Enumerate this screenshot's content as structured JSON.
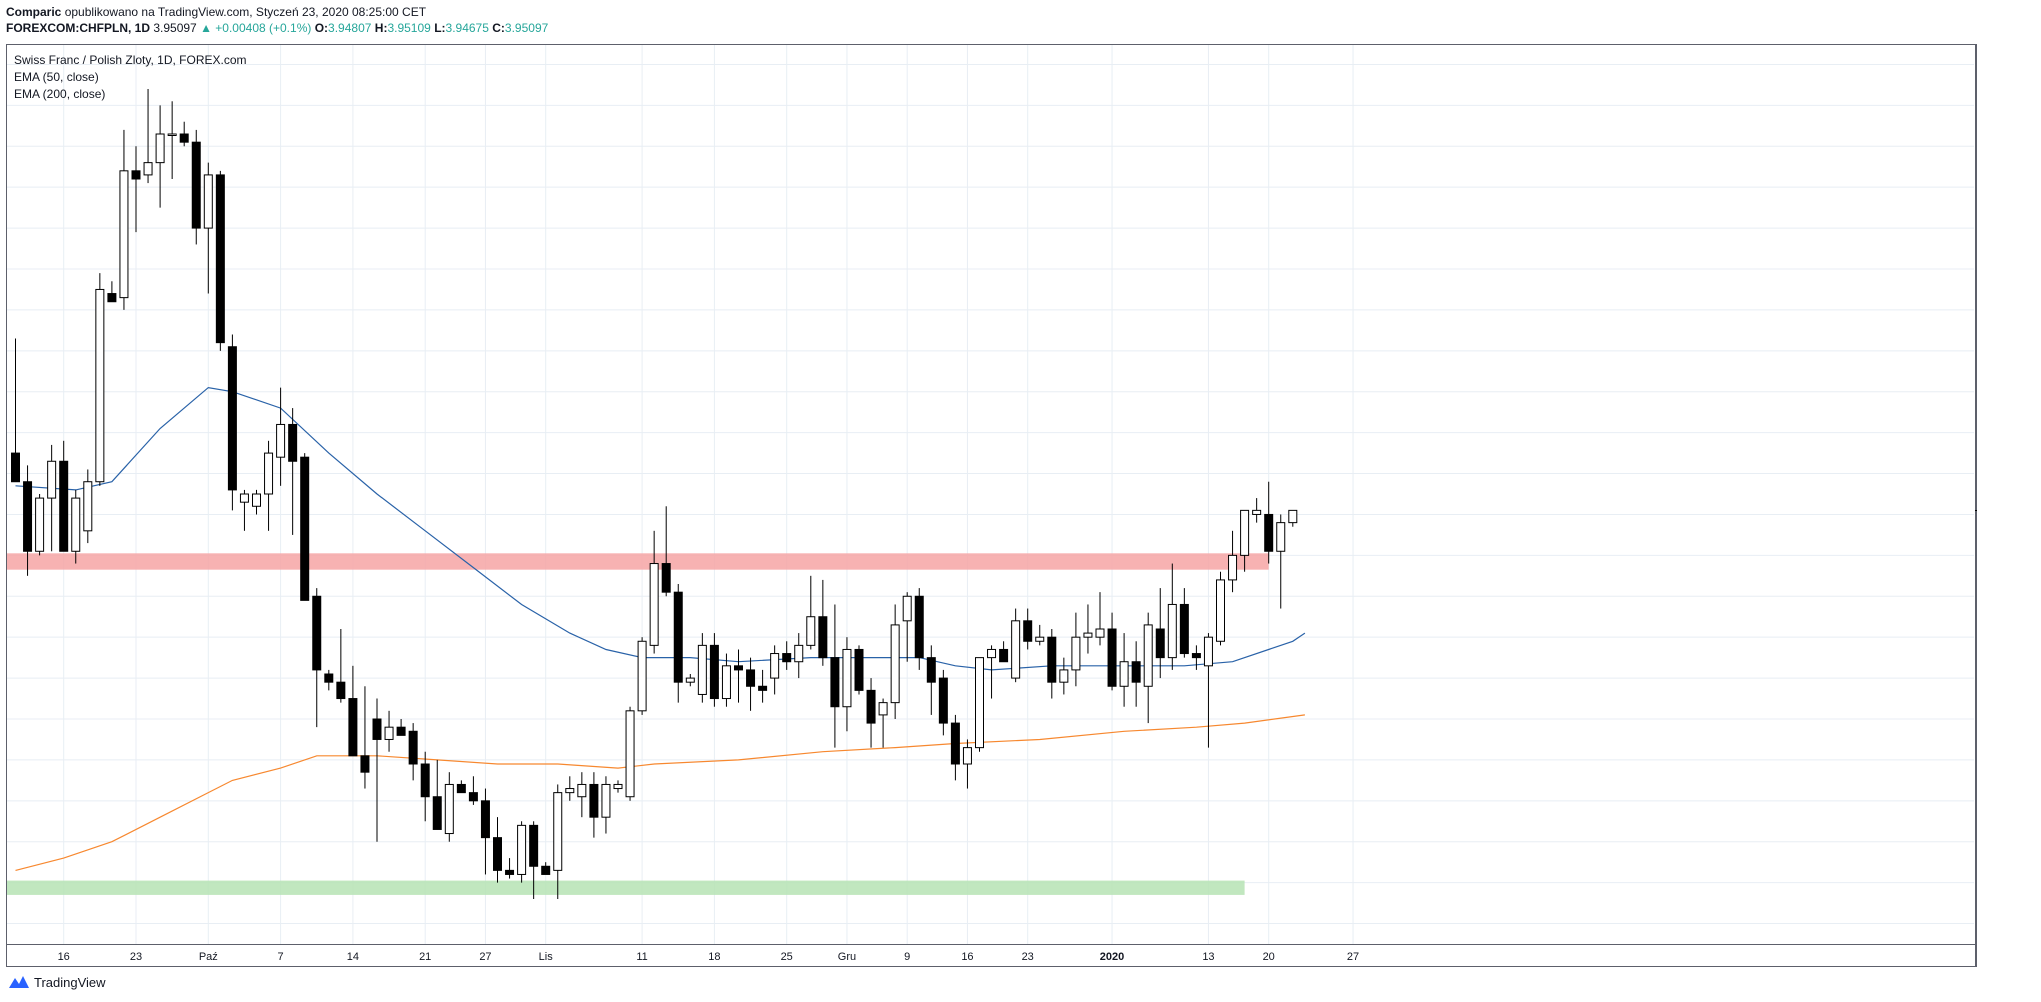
{
  "header": {
    "author": "Comparic",
    "published": "opublikowano na TradingView.com, Styczeń 23, 2020 08:25:00 CET",
    "symbol": "FOREXCOM:CHFPLN, 1D",
    "last": "3.95097",
    "change": "▲ +0.00408 (+0.1%)",
    "o_label": "O:",
    "o": "3.94807",
    "h_label": "H:",
    "h": "3.95109",
    "l_label": "L:",
    "l": "3.94675",
    "c_label": "C:",
    "c": "3.95097"
  },
  "legend": {
    "title": "Swiss Franc / Polish Zloty, 1D, FOREX.com",
    "ema50": "EMA (50, close)",
    "ema200": "EMA (200, close)"
  },
  "footer": {
    "brand": "TradingView"
  },
  "colors": {
    "up": "#ffffff",
    "down": "#000000",
    "wick": "#000000",
    "ema50": "#2962a8",
    "ema200": "#f7882f",
    "resistance": "#f6a5a5",
    "support": "#b6e3b4",
    "grid": "#e8eef4",
    "price_tag": "#000000"
  },
  "chart_data": {
    "type": "candlestick",
    "symbol": "CHFPLN",
    "interval": "1D",
    "ylim": [
      3.845,
      4.065
    ],
    "y_ticks": [
      "3.85000",
      "3.86000",
      "3.87000",
      "3.88000",
      "3.89000",
      "3.90000",
      "3.91000",
      "3.92000",
      "3.93000",
      "3.94000",
      "3.95000",
      "3.96000",
      "3.97000",
      "3.98000",
      "3.99000",
      "4.00000",
      "4.01000",
      "4.02000",
      "4.03000",
      "4.04000",
      "4.05000",
      "4.06000"
    ],
    "last_price_label": "3.95097",
    "x_ticks": [
      {
        "label": "16",
        "i": 4
      },
      {
        "label": "23",
        "i": 10
      },
      {
        "label": "Paź",
        "i": 16
      },
      {
        "label": "7",
        "i": 22
      },
      {
        "label": "14",
        "i": 28
      },
      {
        "label": "21",
        "i": 34
      },
      {
        "label": "27",
        "i": 39
      },
      {
        "label": "Lis",
        "i": 44
      },
      {
        "label": "11",
        "i": 52
      },
      {
        "label": "18",
        "i": 58
      },
      {
        "label": "25",
        "i": 64
      },
      {
        "label": "Gru",
        "i": 69
      },
      {
        "label": "9",
        "i": 74
      },
      {
        "label": "16",
        "i": 79
      },
      {
        "label": "23",
        "i": 84
      },
      {
        "label": "2020",
        "i": 91
      },
      {
        "label": "13",
        "i": 99
      },
      {
        "label": "20",
        "i": 104
      },
      {
        "label": "27",
        "i": 111
      }
    ],
    "candles": [
      [
        3.965,
        3.993,
        3.958,
        3.958
      ],
      [
        3.958,
        3.962,
        3.935,
        3.941
      ],
      [
        3.941,
        3.955,
        3.94,
        3.954
      ],
      [
        3.954,
        3.967,
        3.941,
        3.963
      ],
      [
        3.963,
        3.968,
        3.941,
        3.941
      ],
      [
        3.941,
        3.956,
        3.938,
        3.954
      ],
      [
        3.946,
        3.961,
        3.943,
        3.958
      ],
      [
        3.958,
        4.009,
        3.957,
        4.005
      ],
      [
        4.004,
        4.007,
        4.002,
        4.002
      ],
      [
        4.003,
        4.044,
        4.0,
        4.034
      ],
      [
        4.034,
        4.04,
        4.019,
        4.032
      ],
      [
        4.033,
        4.054,
        4.031,
        4.036
      ],
      [
        4.036,
        4.05,
        4.025,
        4.043
      ],
      [
        4.043,
        4.051,
        4.032,
        4.043
      ],
      [
        4.043,
        4.046,
        4.04,
        4.041
      ],
      [
        4.041,
        4.044,
        4.016,
        4.02
      ],
      [
        4.02,
        4.036,
        4.004,
        4.033
      ],
      [
        4.033,
        4.034,
        3.99,
        3.992
      ],
      [
        3.991,
        3.994,
        3.951,
        3.956
      ],
      [
        3.953,
        3.956,
        3.946,
        3.955
      ],
      [
        3.952,
        3.956,
        3.95,
        3.955
      ],
      [
        3.955,
        3.968,
        3.946,
        3.965
      ],
      [
        3.964,
        3.981,
        3.957,
        3.972
      ],
      [
        3.972,
        3.976,
        3.945,
        3.963
      ],
      [
        3.964,
        3.965,
        3.929,
        3.929
      ],
      [
        3.93,
        3.932,
        3.898,
        3.912
      ],
      [
        3.911,
        3.912,
        3.907,
        3.909
      ],
      [
        3.909,
        3.922,
        3.904,
        3.905
      ],
      [
        3.905,
        3.913,
        3.891,
        3.891
      ],
      [
        3.891,
        3.908,
        3.883,
        3.887
      ],
      [
        3.9,
        3.905,
        3.87,
        3.895
      ],
      [
        3.895,
        3.902,
        3.892,
        3.898
      ],
      [
        3.898,
        3.9,
        3.896,
        3.896
      ],
      [
        3.897,
        3.899,
        3.885,
        3.889
      ],
      [
        3.889,
        3.892,
        3.875,
        3.881
      ],
      [
        3.881,
        3.89,
        3.873,
        3.873
      ],
      [
        3.872,
        3.887,
        3.87,
        3.884
      ],
      [
        3.884,
        3.885,
        3.882,
        3.882
      ],
      [
        3.882,
        3.886,
        3.879,
        3.88
      ],
      [
        3.88,
        3.883,
        3.862,
        3.871
      ],
      [
        3.871,
        3.876,
        3.86,
        3.863
      ],
      [
        3.863,
        3.866,
        3.861,
        3.862
      ],
      [
        3.862,
        3.875,
        3.86,
        3.874
      ],
      [
        3.874,
        3.875,
        3.856,
        3.864
      ],
      [
        3.864,
        3.865,
        3.862,
        3.862
      ],
      [
        3.863,
        3.884,
        3.856,
        3.882
      ],
      [
        3.882,
        3.886,
        3.88,
        3.883
      ],
      [
        3.881,
        3.887,
        3.876,
        3.884
      ],
      [
        3.884,
        3.887,
        3.871,
        3.876
      ],
      [
        3.876,
        3.886,
        3.872,
        3.884
      ],
      [
        3.883,
        3.885,
        3.882,
        3.884
      ],
      [
        3.881,
        3.903,
        3.88,
        3.902
      ],
      [
        3.902,
        3.92,
        3.901,
        3.919
      ],
      [
        3.918,
        3.946,
        3.916,
        3.938
      ],
      [
        3.938,
        3.952,
        3.93,
        3.931
      ],
      [
        3.931,
        3.933,
        3.904,
        3.909
      ],
      [
        3.909,
        3.911,
        3.908,
        3.91
      ],
      [
        3.906,
        3.921,
        3.904,
        3.918
      ],
      [
        3.918,
        3.921,
        3.903,
        3.905
      ],
      [
        3.905,
        3.916,
        3.903,
        3.913
      ],
      [
        3.913,
        3.917,
        3.904,
        3.912
      ],
      [
        3.912,
        3.915,
        3.902,
        3.908
      ],
      [
        3.908,
        3.912,
        3.904,
        3.907
      ],
      [
        3.91,
        3.918,
        3.906,
        3.916
      ],
      [
        3.916,
        3.919,
        3.912,
        3.914
      ],
      [
        3.914,
        3.921,
        3.91,
        3.918
      ],
      [
        3.918,
        3.935,
        3.917,
        3.925
      ],
      [
        3.925,
        3.934,
        3.913,
        3.915
      ],
      [
        3.915,
        3.928,
        3.893,
        3.903
      ],
      [
        3.903,
        3.92,
        3.897,
        3.917
      ],
      [
        3.917,
        3.918,
        3.906,
        3.907
      ],
      [
        3.907,
        3.91,
        3.893,
        3.899
      ],
      [
        3.901,
        3.905,
        3.893,
        3.904
      ],
      [
        3.904,
        3.928,
        3.9,
        3.923
      ],
      [
        3.924,
        3.931,
        3.914,
        3.93
      ],
      [
        3.93,
        3.932,
        3.912,
        3.915
      ],
      [
        3.915,
        3.918,
        3.901,
        3.909
      ],
      [
        3.91,
        3.912,
        3.896,
        3.899
      ],
      [
        3.899,
        3.901,
        3.885,
        3.889
      ],
      [
        3.889,
        3.895,
        3.883,
        3.893
      ],
      [
        3.893,
        3.913,
        3.892,
        3.915
      ],
      [
        3.915,
        3.918,
        3.905,
        3.917
      ],
      [
        3.917,
        3.919,
        3.914,
        3.914
      ],
      [
        3.91,
        3.927,
        3.909,
        3.924
      ],
      [
        3.924,
        3.927,
        3.917,
        3.919
      ],
      [
        3.919,
        3.923,
        3.918,
        3.92
      ],
      [
        3.92,
        3.922,
        3.905,
        3.909
      ],
      [
        3.909,
        3.915,
        3.906,
        3.912
      ],
      [
        3.912,
        3.926,
        3.908,
        3.92
      ],
      [
        3.92,
        3.928,
        3.916,
        3.921
      ],
      [
        3.92,
        3.931,
        3.918,
        3.922
      ],
      [
        3.922,
        3.926,
        3.907,
        3.908
      ],
      [
        3.908,
        3.921,
        3.903,
        3.914
      ],
      [
        3.914,
        3.919,
        3.903,
        3.909
      ],
      [
        3.908,
        3.926,
        3.899,
        3.923
      ],
      [
        3.922,
        3.932,
        3.91,
        3.915
      ],
      [
        3.915,
        3.938,
        3.912,
        3.928
      ],
      [
        3.928,
        3.932,
        3.915,
        3.916
      ],
      [
        3.916,
        3.918,
        3.912,
        3.915
      ],
      [
        3.913,
        3.921,
        3.893,
        3.92
      ],
      [
        3.919,
        3.936,
        3.918,
        3.934
      ],
      [
        3.934,
        3.946,
        3.931,
        3.94
      ],
      [
        3.94,
        3.951,
        3.936,
        3.951
      ],
      [
        3.95,
        3.954,
        3.948,
        3.951
      ],
      [
        3.95,
        3.958,
        3.938,
        3.941
      ],
      [
        3.941,
        3.95,
        3.927,
        3.948
      ],
      [
        3.948,
        3.951,
        3.947,
        3.951
      ]
    ],
    "ema50": [
      [
        0,
        3.957
      ],
      [
        5,
        3.956
      ],
      [
        8,
        3.958
      ],
      [
        12,
        3.971
      ],
      [
        16,
        3.981
      ],
      [
        18,
        3.98
      ],
      [
        22,
        3.976
      ],
      [
        26,
        3.965
      ],
      [
        30,
        3.955
      ],
      [
        34,
        3.946
      ],
      [
        38,
        3.937
      ],
      [
        42,
        3.928
      ],
      [
        46,
        3.921
      ],
      [
        49,
        3.917
      ],
      [
        52,
        3.915
      ],
      [
        56,
        3.915
      ],
      [
        60,
        3.914
      ],
      [
        66,
        3.915
      ],
      [
        70,
        3.915
      ],
      [
        75,
        3.915
      ],
      [
        78,
        3.913
      ],
      [
        81,
        3.912
      ],
      [
        86,
        3.913
      ],
      [
        92,
        3.913
      ],
      [
        97,
        3.913
      ],
      [
        101,
        3.914
      ],
      [
        106,
        3.919
      ],
      [
        107,
        3.921
      ]
    ],
    "ema200": [
      [
        0,
        3.863
      ],
      [
        4,
        3.866
      ],
      [
        8,
        3.87
      ],
      [
        12,
        3.876
      ],
      [
        16,
        3.882
      ],
      [
        18,
        3.885
      ],
      [
        22,
        3.888
      ],
      [
        25,
        3.891
      ],
      [
        30,
        3.891
      ],
      [
        35,
        3.89
      ],
      [
        40,
        3.889
      ],
      [
        45,
        3.889
      ],
      [
        50,
        3.888
      ],
      [
        53,
        3.889
      ],
      [
        60,
        3.89
      ],
      [
        67,
        3.892
      ],
      [
        73,
        3.893
      ],
      [
        78,
        3.894
      ],
      [
        85,
        3.895
      ],
      [
        92,
        3.897
      ],
      [
        98,
        3.898
      ],
      [
        102,
        3.899
      ],
      [
        107,
        3.901
      ]
    ],
    "zones": [
      {
        "name": "resistance",
        "from": 3.9365,
        "to": 3.9405,
        "x_from": -1,
        "x_to": 104,
        "color": "#f6a5a5"
      },
      {
        "name": "support",
        "from": 3.857,
        "to": 3.8605,
        "x_from": -1,
        "x_to": 102,
        "color": "#b6e3b4"
      }
    ]
  }
}
